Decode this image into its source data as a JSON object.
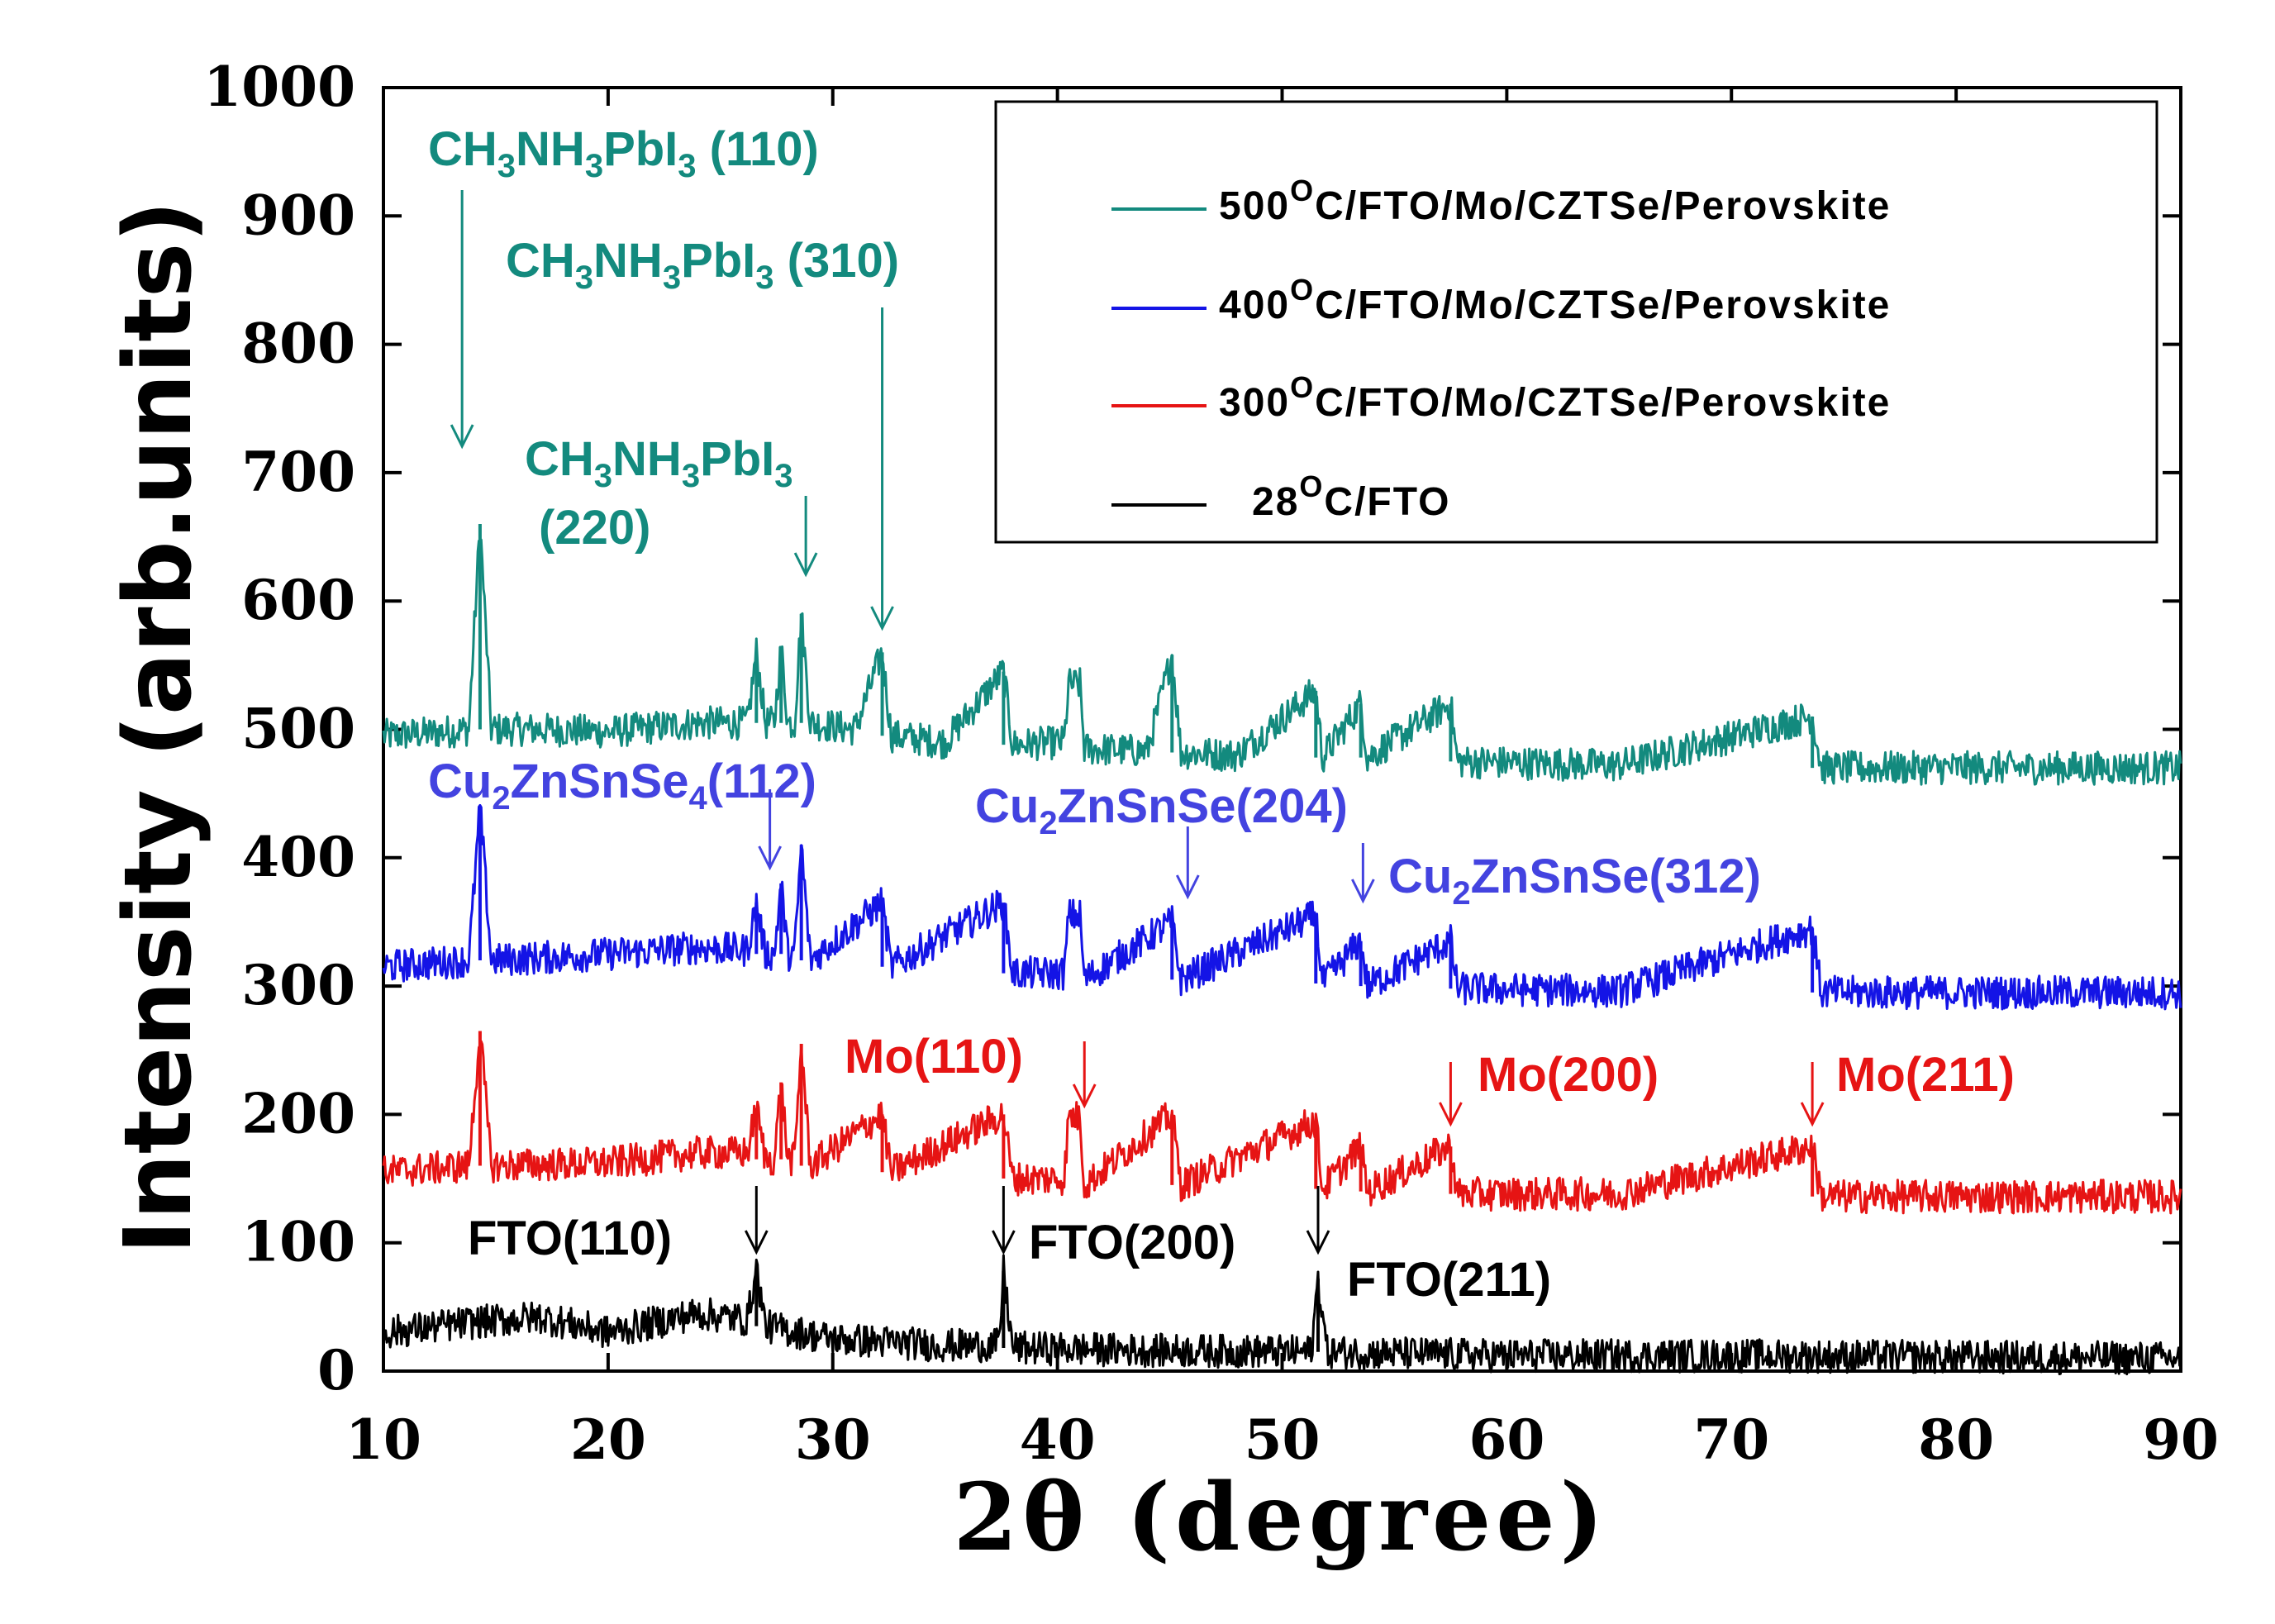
{
  "chart_data": {
    "type": "line",
    "title": "",
    "xlabel": "2θ  (degree)",
    "ylabel": "Intensity (arb.units)",
    "xlim": [
      10,
      90
    ],
    "ylim": [
      0,
      1000
    ],
    "x_ticks": [
      10,
      20,
      30,
      40,
      50,
      60,
      70,
      80,
      90
    ],
    "y_ticks": [
      0,
      100,
      200,
      300,
      400,
      500,
      600,
      700,
      800,
      900,
      1000
    ],
    "legend_position": "top-right",
    "series": [
      {
        "name": "500ᴼC/FTO/Mo/CZTSe/Perovskite",
        "legend_main": "500",
        "legend_sup": "O",
        "legend_rest": "C/FTO/Mo/CZTSe/Perovskite",
        "color": "#138a7e",
        "points": [
          [
            10,
            495
          ],
          [
            12,
            497
          ],
          [
            13.8,
            500
          ],
          [
            14.3,
            660
          ],
          [
            14.8,
            500
          ],
          [
            17,
            500
          ],
          [
            20,
            498
          ],
          [
            24,
            505
          ],
          [
            26.2,
            505
          ],
          [
            26.6,
            560
          ],
          [
            27,
            505
          ],
          [
            27.4,
            505
          ],
          [
            27.7,
            565
          ],
          [
            28,
            505
          ],
          [
            28.3,
            505
          ],
          [
            28.6,
            590
          ],
          [
            29,
            505
          ],
          [
            31,
            500
          ],
          [
            32.2,
            560
          ],
          [
            32.6,
            495
          ],
          [
            35,
            490
          ],
          [
            37.6,
            545
          ],
          [
            38,
            488
          ],
          [
            40.3,
            490
          ],
          [
            40.5,
            535
          ],
          [
            41,
            535
          ],
          [
            41.2,
            485
          ],
          [
            44,
            483
          ],
          [
            45.1,
            558
          ],
          [
            45.5,
            482
          ],
          [
            48,
            480
          ],
          [
            51.5,
            530
          ],
          [
            51.8,
            478
          ],
          [
            53.5,
            520
          ],
          [
            53.8,
            478
          ],
          [
            57.5,
            520
          ],
          [
            57.8,
            475
          ],
          [
            65,
            472
          ],
          [
            73.6,
            510
          ],
          [
            74,
            470
          ],
          [
            90,
            470
          ]
        ]
      },
      {
        "name": "400ᴼC/FTO/Mo/CZTSe/Perovskite",
        "legend_main": "400",
        "legend_sup": "O",
        "legend_rest": "C/FTO/Mo/CZTSe/Perovskite",
        "color": "#1414e6",
        "points": [
          [
            10,
            315
          ],
          [
            13.8,
            320
          ],
          [
            14.3,
            440
          ],
          [
            14.8,
            320
          ],
          [
            20,
            325
          ],
          [
            24,
            330
          ],
          [
            26.2,
            328
          ],
          [
            26.6,
            365
          ],
          [
            27,
            325
          ],
          [
            27.4,
            325
          ],
          [
            27.7,
            380
          ],
          [
            28,
            325
          ],
          [
            28.3,
            325
          ],
          [
            28.6,
            410
          ],
          [
            29,
            320
          ],
          [
            32.2,
            365
          ],
          [
            32.6,
            315
          ],
          [
            37.6,
            365
          ],
          [
            38,
            310
          ],
          [
            40.3,
            310
          ],
          [
            40.5,
            355
          ],
          [
            41,
            355
          ],
          [
            41.2,
            305
          ],
          [
            45.1,
            350
          ],
          [
            45.5,
            305
          ],
          [
            51.5,
            355
          ],
          [
            51.8,
            302
          ],
          [
            53.5,
            335
          ],
          [
            53.8,
            300
          ],
          [
            57.5,
            335
          ],
          [
            57.8,
            298
          ],
          [
            65,
            296
          ],
          [
            73.6,
            345
          ],
          [
            74,
            295
          ],
          [
            90,
            295
          ]
        ]
      },
      {
        "name": "300ᴼC/FTO/Mo/CZTSe/Perovskite",
        "legend_main": "300",
        "legend_sup": "O",
        "legend_rest": "C/FTO/Mo/CZTSe/Perovskite",
        "color": "#e61414",
        "points": [
          [
            10,
            155
          ],
          [
            13.8,
            160
          ],
          [
            14.3,
            265
          ],
          [
            14.8,
            160
          ],
          [
            20,
            162
          ],
          [
            24,
            170
          ],
          [
            26.2,
            170
          ],
          [
            26.6,
            205
          ],
          [
            27,
            165
          ],
          [
            27.4,
            165
          ],
          [
            27.7,
            225
          ],
          [
            28,
            165
          ],
          [
            28.3,
            165
          ],
          [
            28.6,
            255
          ],
          [
            29,
            160
          ],
          [
            32.2,
            200
          ],
          [
            32.6,
            155
          ],
          [
            37.6,
            200
          ],
          [
            38,
            150
          ],
          [
            40.3,
            150
          ],
          [
            40.5,
            198
          ],
          [
            41,
            198
          ],
          [
            41.2,
            145
          ],
          [
            45.1,
            200
          ],
          [
            45.5,
            145
          ],
          [
            51.5,
            195
          ],
          [
            51.8,
            142
          ],
          [
            53.5,
            175
          ],
          [
            53.8,
            140
          ],
          [
            57.5,
            175
          ],
          [
            57.8,
            138
          ],
          [
            65,
            138
          ],
          [
            73.6,
            175
          ],
          [
            74,
            136
          ],
          [
            90,
            136
          ]
        ]
      },
      {
        "name": "28ᴼC/FTO",
        "legend_main": "28",
        "legend_sup": "O",
        "legend_rest": "C/FTO",
        "color": "#000000",
        "points": [
          [
            10,
            30
          ],
          [
            14,
            38
          ],
          [
            17,
            42
          ],
          [
            20,
            30
          ],
          [
            24,
            45
          ],
          [
            26.2,
            40
          ],
          [
            26.6,
            80
          ],
          [
            27,
            35
          ],
          [
            30,
            25
          ],
          [
            35,
            20
          ],
          [
            37.4,
            20
          ],
          [
            37.6,
            78
          ],
          [
            38,
            18
          ],
          [
            45,
            16
          ],
          [
            51.3,
            15
          ],
          [
            51.6,
            72
          ],
          [
            52,
            15
          ],
          [
            60,
            12
          ],
          [
            70,
            12
          ],
          [
            90,
            10
          ]
        ]
      }
    ],
    "annotations": [
      {
        "id": "ch110",
        "main": "CH",
        "s1": "3",
        "m2": "NH",
        "s2": "3",
        "m3": "PbI",
        "s3": "3",
        "suffix": " (110)",
        "color": "#138a7e",
        "arrow_x": 13.5
      },
      {
        "id": "ch310",
        "main": "CH",
        "s1": "3",
        "m2": "NH",
        "s2": "3",
        "m3": "PbI",
        "s3": "3",
        "suffix": " (310)",
        "color": "#138a7e",
        "arrow_x": 32.2
      },
      {
        "id": "ch220",
        "main": "CH",
        "s1": "3",
        "m2": "NH",
        "s2": "3",
        "m3": "PbI",
        "s3": "3",
        "line2": "(220)",
        "color": "#138a7e",
        "arrow_x": 28.8
      },
      {
        "id": "czt112",
        "main": "Cu",
        "s1": "2",
        "m2": "ZnSnSe",
        "s2": "4",
        "suffix": "(112)",
        "color": "#4343e0",
        "arrow_x": 27.2
      },
      {
        "id": "czt204",
        "main": "Cu",
        "s1": "2",
        "m2": "ZnSnSe(204)",
        "color": "#4343e0",
        "arrow_x": 45.8
      },
      {
        "id": "czt312",
        "main": "Cu",
        "s1": "2",
        "m2": "ZnSnSe(312)",
        "color": "#4343e0",
        "arrow_x": 53.6
      },
      {
        "id": "mo110",
        "text": "Mo(110)",
        "color": "#e61414",
        "arrow_x": 41.2
      },
      {
        "id": "mo200",
        "text": "Mo(200)",
        "color": "#e61414",
        "arrow_x": 57.5
      },
      {
        "id": "mo211",
        "text": "Mo(211)",
        "color": "#e61414",
        "arrow_x": 73.6
      },
      {
        "id": "fto110",
        "text": "FTO(110)",
        "color": "#000000",
        "arrow_x": 26.6
      },
      {
        "id": "fto200",
        "text": "FTO(200)",
        "color": "#000000",
        "arrow_x": 37.6
      },
      {
        "id": "fto211",
        "text": "FTO(211)",
        "color": "#000000",
        "arrow_x": 51.6
      }
    ]
  }
}
